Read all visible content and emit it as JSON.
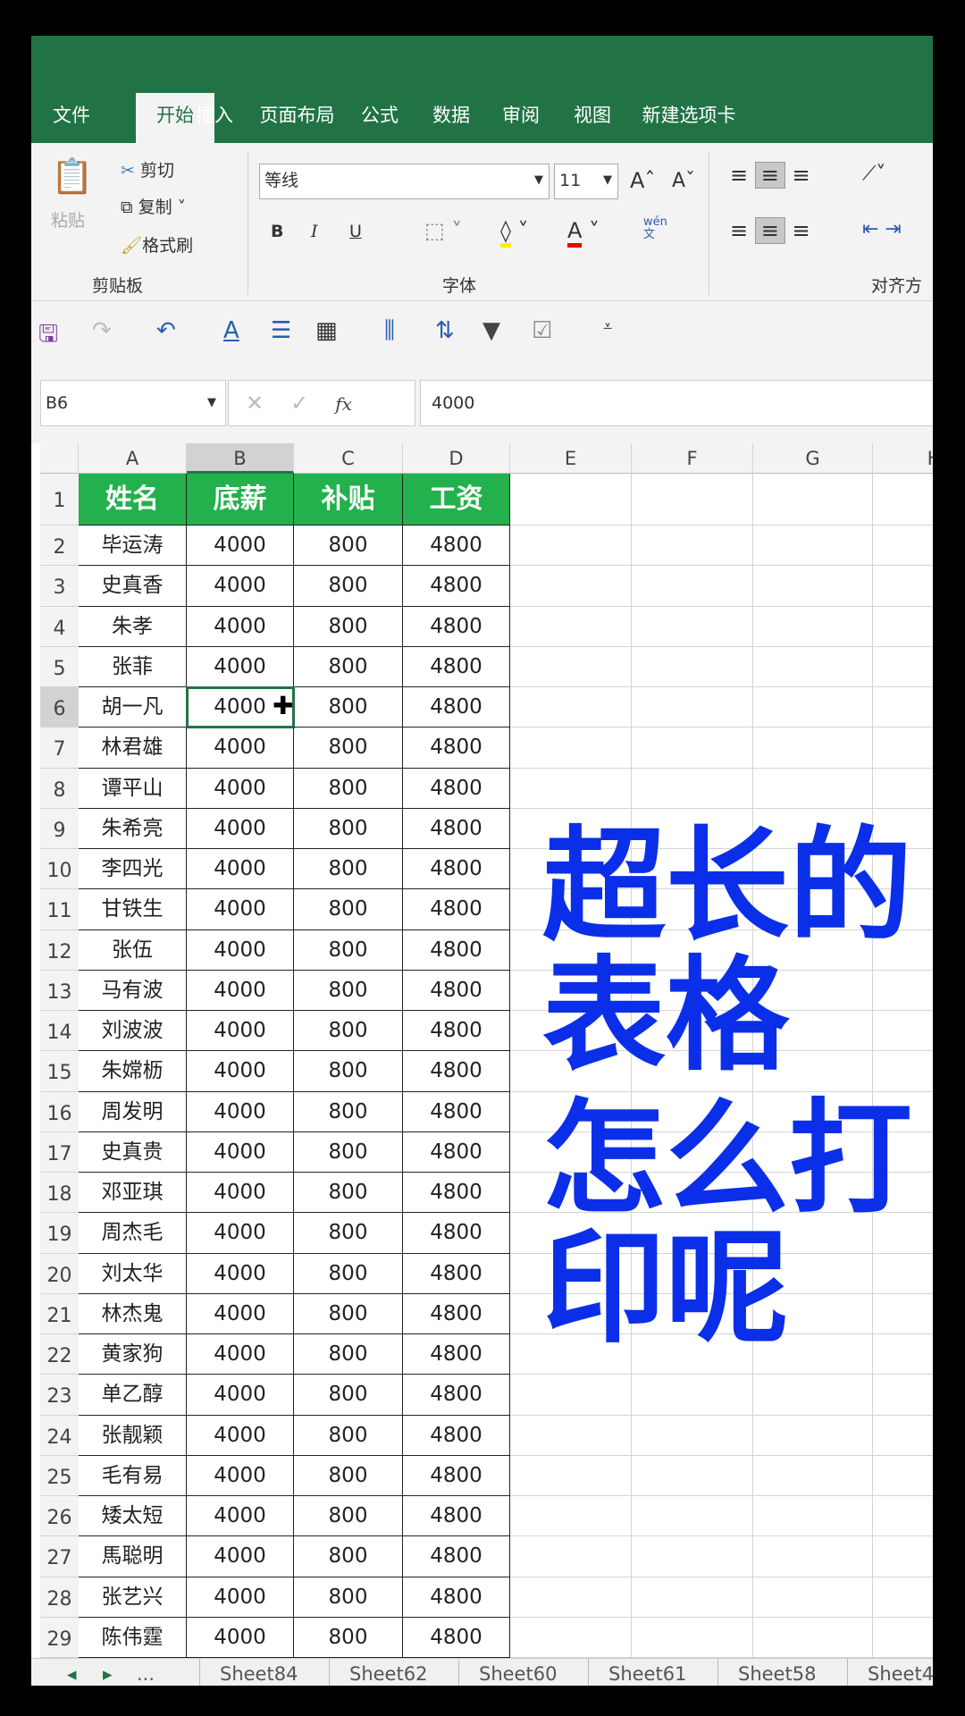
{
  "menu": [
    "文件",
    "开始",
    "插入",
    "页面布局",
    "公式",
    "数据",
    "审阅",
    "视图",
    "新建选项卡"
  ],
  "ribbon": {
    "paste": "粘贴",
    "cut": "剪切",
    "copy": "复制",
    "format_painter": "格式刷",
    "clipboard_group": "剪贴板",
    "font_name": "等线",
    "font_size": "11",
    "bold": "B",
    "italic": "I",
    "underline": "U",
    "phonetic": "wén\n文",
    "font_group": "字体",
    "align_group": "对齐方"
  },
  "formula_bar": {
    "name_box": "B6",
    "fx": "fx",
    "value": "4000"
  },
  "columns": [
    "A",
    "B",
    "C",
    "D",
    "E",
    "F",
    "G",
    "H"
  ],
  "headers": [
    "姓名",
    "底薪",
    "补贴",
    "工资"
  ],
  "rows": [
    [
      "毕运涛",
      "4000",
      "800",
      "4800"
    ],
    [
      "史真香",
      "4000",
      "800",
      "4800"
    ],
    [
      "朱孝",
      "4000",
      "800",
      "4800"
    ],
    [
      "张菲",
      "4000",
      "800",
      "4800"
    ],
    [
      "胡一凡",
      "4000",
      "800",
      "4800"
    ],
    [
      "林君雄",
      "4000",
      "800",
      "4800"
    ],
    [
      "谭平山",
      "4000",
      "800",
      "4800"
    ],
    [
      "朱希亮",
      "4000",
      "800",
      "4800"
    ],
    [
      "李四光",
      "4000",
      "800",
      "4800"
    ],
    [
      "甘铁生",
      "4000",
      "800",
      "4800"
    ],
    [
      "张伍",
      "4000",
      "800",
      "4800"
    ],
    [
      "马有波",
      "4000",
      "800",
      "4800"
    ],
    [
      "刘波波",
      "4000",
      "800",
      "4800"
    ],
    [
      "朱嫦枥",
      "4000",
      "800",
      "4800"
    ],
    [
      "周发明",
      "4000",
      "800",
      "4800"
    ],
    [
      "史真贵",
      "4000",
      "800",
      "4800"
    ],
    [
      "邓亚琪",
      "4000",
      "800",
      "4800"
    ],
    [
      "周杰毛",
      "4000",
      "800",
      "4800"
    ],
    [
      "刘太华",
      "4000",
      "800",
      "4800"
    ],
    [
      "林杰鬼",
      "4000",
      "800",
      "4800"
    ],
    [
      "黄家狗",
      "4000",
      "800",
      "4800"
    ],
    [
      "单乙醇",
      "4000",
      "800",
      "4800"
    ],
    [
      "张靓颖",
      "4000",
      "800",
      "4800"
    ],
    [
      "毛有易",
      "4000",
      "800",
      "4800"
    ],
    [
      "矮太短",
      "4000",
      "800",
      "4800"
    ],
    [
      "馬聪明",
      "4000",
      "800",
      "4800"
    ],
    [
      "张艺兴",
      "4000",
      "800",
      "4800"
    ],
    [
      "陈伟霆",
      "4000",
      "800",
      "4800"
    ]
  ],
  "active_cell": "B6",
  "sheet_tabs": [
    "Sheet84",
    "Sheet62",
    "Sheet60",
    "Sheet61",
    "Sheet58",
    "Sheet4"
  ],
  "sheet_nav": {
    "more": "..."
  },
  "overlay": {
    "line1": "超长的表格",
    "line2": "怎么打印呢"
  },
  "colors": {
    "excel_green": "#217346",
    "header_fill": "#22b14c",
    "overlay_blue": "#0b2fe8"
  }
}
